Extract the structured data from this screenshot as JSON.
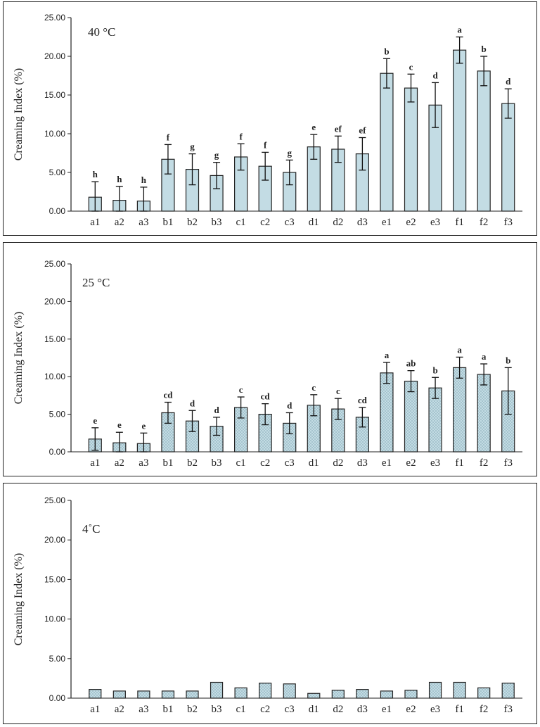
{
  "chart_data": [
    {
      "type": "bar",
      "panel_label": "40 °C",
      "ylabel": "Creaming Index (%)",
      "ylim": [
        0,
        25
      ],
      "yticks": [
        "0.00",
        "5.00",
        "10.00",
        "15.00",
        "20.00",
        "25.00"
      ],
      "bar_pattern": "solid",
      "categories": [
        "a1",
        "a2",
        "a3",
        "b1",
        "b2",
        "b3",
        "c1",
        "c2",
        "c3",
        "d1",
        "d2",
        "d3",
        "e1",
        "e2",
        "e3",
        "f1",
        "f2",
        "f3"
      ],
      "values": [
        1.8,
        1.4,
        1.3,
        6.7,
        5.4,
        4.6,
        7.0,
        5.8,
        5.0,
        8.3,
        8.0,
        7.4,
        17.8,
        15.9,
        13.7,
        20.8,
        18.1,
        13.9
      ],
      "errors": [
        2.0,
        1.8,
        1.8,
        1.9,
        2.0,
        1.7,
        1.7,
        1.8,
        1.6,
        1.6,
        1.7,
        2.1,
        1.9,
        1.8,
        2.9,
        1.7,
        1.9,
        1.9
      ],
      "significance": [
        "h",
        "h",
        "h",
        "f",
        "g",
        "g",
        "f",
        "f",
        "g",
        "e",
        "ef",
        "ef",
        "b",
        "c",
        "d",
        "a",
        "b",
        "d"
      ]
    },
    {
      "type": "bar",
      "panel_label": "25 °C",
      "ylabel": "Creaming Index (%)",
      "ylim": [
        0,
        25
      ],
      "yticks": [
        "0.00",
        "5.00",
        "10.00",
        "15.00",
        "20.00",
        "25.00"
      ],
      "bar_pattern": "dotted",
      "categories": [
        "a1",
        "a2",
        "a3",
        "b1",
        "b2",
        "b3",
        "c1",
        "c2",
        "c3",
        "d1",
        "d2",
        "d3",
        "e1",
        "e2",
        "e3",
        "f1",
        "f2",
        "f3"
      ],
      "values": [
        1.7,
        1.2,
        1.1,
        5.2,
        4.1,
        3.4,
        5.9,
        5.0,
        3.8,
        6.2,
        5.7,
        4.6,
        10.5,
        9.4,
        8.5,
        11.2,
        10.3,
        8.1
      ],
      "errors": [
        1.5,
        1.4,
        1.4,
        1.4,
        1.4,
        1.2,
        1.4,
        1.4,
        1.4,
        1.4,
        1.4,
        1.3,
        1.4,
        1.4,
        1.4,
        1.4,
        1.4,
        3.1
      ],
      "significance": [
        "e",
        "e",
        "e",
        "cd",
        "d",
        "d",
        "c",
        "cd",
        "d",
        "c",
        "c",
        "cd",
        "a",
        "ab",
        "b",
        "a",
        "a",
        "b"
      ]
    },
    {
      "type": "bar",
      "panel_label": "4˚C",
      "ylabel": "Creaming Index (%)",
      "ylim": [
        0,
        25
      ],
      "yticks": [
        "0.00",
        "5.00",
        "10.00",
        "15.00",
        "20.00",
        "25.00"
      ],
      "bar_pattern": "dotted",
      "categories": [
        "a1",
        "a2",
        "a3",
        "b1",
        "b2",
        "b3",
        "c1",
        "c2",
        "c3",
        "d1",
        "d2",
        "d3",
        "e1",
        "e2",
        "e3",
        "f1",
        "f2",
        "f3"
      ],
      "values": [
        1.1,
        0.9,
        0.9,
        0.9,
        0.9,
        2.0,
        1.3,
        1.9,
        1.8,
        0.6,
        1.0,
        1.1,
        0.9,
        1.0,
        2.0,
        2.0,
        1.3,
        1.9
      ],
      "errors": [
        0.05,
        0.05,
        0.05,
        0.05,
        0.05,
        0.05,
        0.05,
        0.05,
        0.15,
        0.1,
        0.05,
        0.05,
        0.05,
        0.05,
        0.15,
        0.05,
        0.05,
        0.05
      ],
      "significance": []
    }
  ],
  "colors": {
    "bar_fill": "#c3dce4",
    "bar_stroke": "#222222",
    "dot": "#5f8a98",
    "axis": "#222222"
  }
}
